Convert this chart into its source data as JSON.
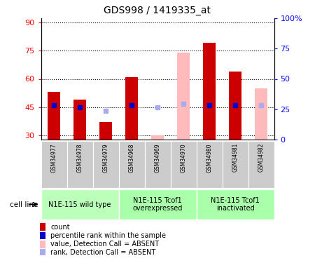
{
  "title": "GDS998 / 1419335_at",
  "samples": [
    "GSM34977",
    "GSM34978",
    "GSM34979",
    "GSM34968",
    "GSM34969",
    "GSM34970",
    "GSM34980",
    "GSM34981",
    "GSM34982"
  ],
  "count_values": [
    53,
    49,
    37,
    61,
    30,
    74,
    79,
    64,
    55
  ],
  "count_absent": [
    false,
    false,
    false,
    false,
    true,
    true,
    false,
    false,
    true
  ],
  "percentile_values": [
    46,
    45,
    43,
    46,
    45,
    47,
    46,
    46,
    46
  ],
  "percentile_absent": [
    false,
    false,
    true,
    false,
    true,
    true,
    false,
    false,
    true
  ],
  "groups": [
    {
      "label": "N1E-115 wild type",
      "start": 0,
      "end": 3,
      "color": "#bbffbb"
    },
    {
      "label": "N1E-115 Tcof1\noverexpressed",
      "start": 3,
      "end": 6,
      "color": "#aaffaa"
    },
    {
      "label": "N1E-115 Tcof1\ninactivated",
      "start": 6,
      "end": 9,
      "color": "#aaffaa"
    }
  ],
  "ylim_left": [
    28,
    92
  ],
  "ylim_right": [
    0,
    100
  ],
  "yticks_left": [
    30,
    45,
    60,
    75,
    90
  ],
  "yticks_right": [
    0,
    25,
    50,
    75,
    100
  ],
  "ytick_labels_left": [
    "30",
    "45",
    "60",
    "75",
    "90"
  ],
  "ytick_labels_right": [
    "0",
    "25",
    "50",
    "75",
    "100%"
  ],
  "bar_color_present": "#cc0000",
  "bar_color_absent": "#ffbbbb",
  "pct_color_present": "#0000cc",
  "pct_color_absent": "#aaaaee",
  "bar_width": 0.5,
  "legend_items": [
    {
      "label": "count",
      "color": "#cc0000"
    },
    {
      "label": "percentile rank within the sample",
      "color": "#0000cc"
    },
    {
      "label": "value, Detection Call = ABSENT",
      "color": "#ffbbbb"
    },
    {
      "label": "rank, Detection Call = ABSENT",
      "color": "#aaaaee"
    }
  ],
  "sample_box_color": "#cccccc",
  "plot_bg_color": "#ffffff"
}
